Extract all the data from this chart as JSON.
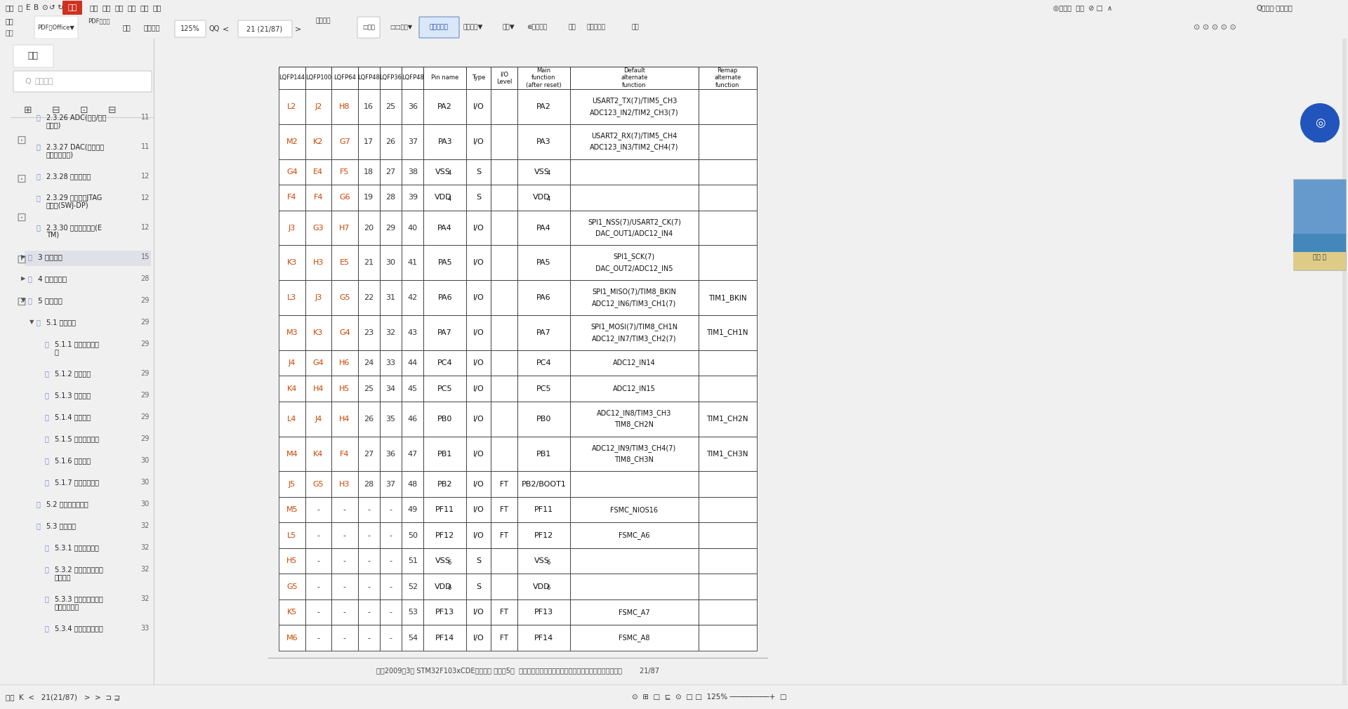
{
  "bg_color": "#f0f0f0",
  "sidebar_bg": "#f0f0f0",
  "white": "#ffffff",
  "table_rows": [
    [
      "L2",
      "J2",
      "H8",
      "16",
      "25",
      "36",
      "PA2",
      "I/O",
      "",
      "PA2",
      "USART2_TX(7)/TIM5_CH3\nADC123_IN2/TIM2_CH3(7)",
      ""
    ],
    [
      "M2",
      "K2",
      "G7",
      "17",
      "26",
      "37",
      "PA3",
      "I/O",
      "",
      "PA3",
      "USART2_RX(7)/TIM5_CH4\nADC123_IN3/TIM2_CH4(7)",
      ""
    ],
    [
      "G4",
      "E4",
      "F5",
      "18",
      "27",
      "38",
      "VSS_4",
      "S",
      "",
      "VSS_4",
      "",
      ""
    ],
    [
      "F4",
      "F4",
      "G6",
      "19",
      "28",
      "39",
      "VDD_4",
      "S",
      "",
      "VDD_4",
      "",
      ""
    ],
    [
      "J3",
      "G3",
      "H7",
      "20",
      "29",
      "40",
      "PA4",
      "I/O",
      "",
      "PA4",
      "SPI1_NSS(7)/USART2_CK(7)\nDAC_OUT1/ADC12_IN4",
      ""
    ],
    [
      "K3",
      "H3",
      "E5",
      "21",
      "30",
      "41",
      "PA5",
      "I/O",
      "",
      "PA5",
      "SPI1_SCK(7)\nDAC_OUT2/ADC12_IN5",
      ""
    ],
    [
      "L3",
      "J3",
      "G5",
      "22",
      "31",
      "42",
      "PA6",
      "I/O",
      "",
      "PA6",
      "SPI1_MISO(7)/TIM8_BKIN\nADC12_IN6/TIM3_CH1(7)",
      "TIM1_BKIN"
    ],
    [
      "M3",
      "K3",
      "G4",
      "23",
      "32",
      "43",
      "PA7",
      "I/O",
      "",
      "PA7",
      "SPI1_MOSI(7)/TIM8_CH1N\nADC12_IN7/TIM3_CH2(7)",
      "TIM1_CH1N"
    ],
    [
      "J4",
      "G4",
      "H6",
      "24",
      "33",
      "44",
      "PC4",
      "I/O",
      "",
      "PC4",
      "ADC12_IN14",
      ""
    ],
    [
      "K4",
      "H4",
      "H5",
      "25",
      "34",
      "45",
      "PC5",
      "I/O",
      "",
      "PC5",
      "ADC12_IN15",
      ""
    ],
    [
      "L4",
      "J4",
      "H4",
      "26",
      "35",
      "46",
      "PB0",
      "I/O",
      "",
      "PB0",
      "ADC12_IN8/TIM3_CH3\nTIM8_CH2N",
      "TIM1_CH2N"
    ],
    [
      "M4",
      "K4",
      "F4",
      "27",
      "36",
      "47",
      "PB1",
      "I/O",
      "",
      "PB1",
      "ADC12_IN9/TIM3_CH4(7)\nTIM8_CH3N",
      "TIM1_CH3N"
    ],
    [
      "J5",
      "G5",
      "H3",
      "28",
      "37",
      "48",
      "PB2",
      "I/O",
      "FT",
      "PB2/BOOT1",
      "",
      ""
    ],
    [
      "M5",
      "-",
      "-",
      "-",
      "-",
      "49",
      "PF11",
      "I/O",
      "FT",
      "PF11",
      "FSMC_NIOS16",
      ""
    ],
    [
      "L5",
      "-",
      "-",
      "-",
      "-",
      "50",
      "PF12",
      "I/O",
      "FT",
      "PF12",
      "FSMC_A6",
      ""
    ],
    [
      "H5",
      "-",
      "-",
      "-",
      "-",
      "51",
      "VSS_6",
      "S",
      "",
      "VSS_6",
      "",
      ""
    ],
    [
      "G5",
      "-",
      "-",
      "-",
      "-",
      "52",
      "VDD_6",
      "S",
      "",
      "VDD_6",
      "",
      ""
    ],
    [
      "K5",
      "-",
      "-",
      "-",
      "-",
      "53",
      "PF13",
      "I/O",
      "FT",
      "PF13",
      "FSMC_A7",
      ""
    ],
    [
      "M6",
      "-",
      "-",
      "-",
      "-",
      "54",
      "PF14",
      "I/O",
      "FT",
      "PF14",
      "FSMC_A8",
      ""
    ]
  ],
  "col_headers_line1": [
    "LQFP144",
    "LQFP100",
    "LQFP64",
    "LQFP48",
    "LQFP36",
    "LQFP48",
    "Pin name",
    "Type",
    "I/O Level",
    "Main function (after reset)",
    "Default alternate function",
    "Remap alternate function"
  ],
  "sidebar_items": [
    {
      "text": "2.3.26 ADC(模拟/数字\n转换器)",
      "indent": 1,
      "page": "11"
    },
    {
      "text": "2.3.27 DAC(数字至模\n拟信号转换器)",
      "indent": 1,
      "page": "11"
    },
    {
      "text": "2.3.28 温度传感器",
      "indent": 1,
      "page": "12"
    },
    {
      "text": "2.3.29 串行单线JTAG\n调试口(SWJ-DP)",
      "indent": 1,
      "page": "12"
    },
    {
      "text": "2.3.30 内嵌跟踪模块(E\nTM)",
      "indent": 1,
      "page": "12"
    },
    {
      "text": "3 引脚定义",
      "indent": 0,
      "page": "15"
    },
    {
      "text": "4 存储器映像",
      "indent": 0,
      "page": "28"
    },
    {
      "text": "5 电气特性",
      "indent": 0,
      "page": "29"
    },
    {
      "text": "5.1 测试条件",
      "indent": 1,
      "page": "29"
    },
    {
      "text": "5.1.1 最小和最大数\n值",
      "indent": 2,
      "page": "29"
    },
    {
      "text": "5.1.2 典型数值",
      "indent": 2,
      "page": "29"
    },
    {
      "text": "5.1.3 典型曲线",
      "indent": 2,
      "page": "29"
    },
    {
      "text": "5.1.4 负载电容",
      "indent": 2,
      "page": "29"
    },
    {
      "text": "5.1.5 引脚输入电压",
      "indent": 2,
      "page": "29"
    },
    {
      "text": "5.1.6 供电方案",
      "indent": 2,
      "page": "30"
    },
    {
      "text": "5.1.7 电流消耗数值",
      "indent": 2,
      "page": "30"
    },
    {
      "text": "5.2 绝对最大额定值",
      "indent": 1,
      "page": "30"
    },
    {
      "text": "5.3 工作条件",
      "indent": 1,
      "page": "32"
    },
    {
      "text": "5.3.1 通用工作条件",
      "indent": 2,
      "page": "32"
    },
    {
      "text": "5.3.2 上电和掉电时的\n工作条件",
      "indent": 2,
      "page": "32"
    },
    {
      "text": "5.3.3 内部复位和电源\n控制模块特性",
      "indent": 2,
      "page": "32"
    },
    {
      "text": "5.3.4 内置的参考电压",
      "indent": 2,
      "page": "33"
    }
  ],
  "footer_text": "参照2009年3月 STM32F103xCDE数据手册 英文第5版  （本译文仅供参考，如有翻译错误，请以英文版稿为准）        21/87",
  "page_number": "21 (21/87)"
}
